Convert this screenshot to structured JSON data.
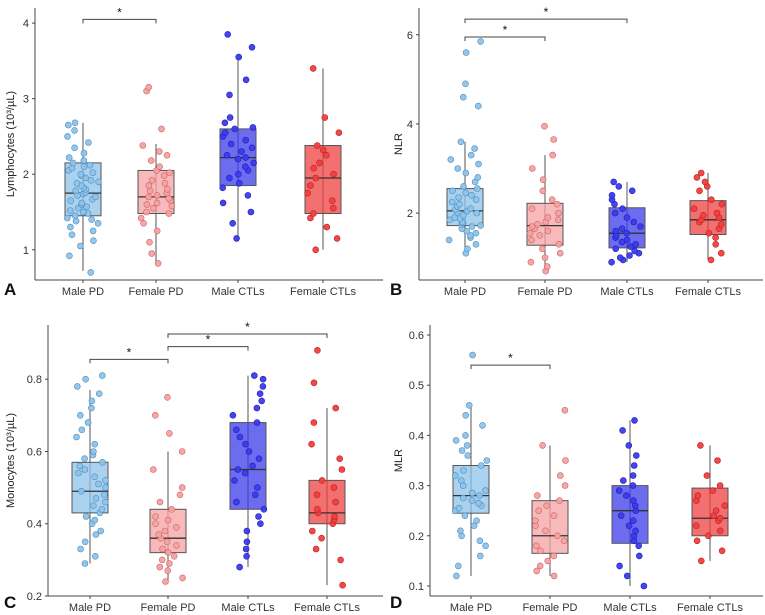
{
  "chart_data": [
    {
      "type": "box",
      "panel": "A",
      "ylabel": "Lymphocytes (10³/µL)",
      "ylim": [
        0.6,
        4.2
      ],
      "yticks": [
        1,
        2,
        3,
        4
      ],
      "categories": [
        "Male PD",
        "Female PD",
        "Male CTLs",
        "Female CTLs"
      ],
      "colors": [
        "#8ec3ea",
        "#f4a2a2",
        "#3b3bea",
        "#ee4040"
      ],
      "boxes": [
        {
          "q1": 1.45,
          "median": 1.75,
          "q3": 2.15,
          "whisker_low": 0.72,
          "whisker_high": 2.68
        },
        {
          "q1": 1.48,
          "median": 1.7,
          "q3": 2.05,
          "whisker_low": 0.82,
          "whisker_high": 2.4
        },
        {
          "q1": 1.85,
          "median": 2.22,
          "q3": 2.6,
          "whisker_low": 1.15,
          "whisker_high": 3.55
        },
        {
          "q1": 1.48,
          "median": 1.95,
          "q3": 2.38,
          "whisker_low": 1.0,
          "whisker_high": 3.4
        }
      ],
      "points": [
        [
          0.7,
          0.92,
          1.05,
          1.12,
          1.2,
          1.25,
          1.3,
          1.35,
          1.38,
          1.4,
          1.42,
          1.45,
          1.48,
          1.5,
          1.52,
          1.55,
          1.57,
          1.6,
          1.62,
          1.65,
          1.67,
          1.7,
          1.72,
          1.74,
          1.76,
          1.78,
          1.8,
          1.82,
          1.85,
          1.88,
          1.9,
          1.92,
          1.95,
          1.98,
          2.0,
          2.02,
          2.05,
          2.08,
          2.1,
          2.12,
          2.15,
          2.18,
          2.22,
          2.28,
          2.35,
          2.42,
          2.5,
          2.58,
          2.65,
          2.68
        ],
        [
          0.82,
          0.95,
          1.1,
          1.25,
          1.35,
          1.42,
          1.48,
          1.5,
          1.55,
          1.58,
          1.6,
          1.62,
          1.65,
          1.68,
          1.7,
          1.72,
          1.75,
          1.78,
          1.8,
          1.85,
          1.88,
          1.92,
          1.98,
          2.02,
          2.05,
          2.1,
          2.18,
          2.25,
          2.3,
          2.38,
          2.6,
          3.1,
          3.15
        ],
        [
          1.15,
          1.35,
          1.5,
          1.62,
          1.72,
          1.82,
          1.88,
          1.95,
          2.0,
          2.05,
          2.1,
          2.15,
          2.2,
          2.22,
          2.25,
          2.3,
          2.35,
          2.4,
          2.45,
          2.5,
          2.55,
          2.6,
          2.62,
          2.68,
          2.75,
          3.05,
          3.25,
          3.55,
          3.68,
          3.85
        ],
        [
          1.0,
          1.15,
          1.3,
          1.42,
          1.48,
          1.55,
          1.65,
          1.75,
          1.85,
          1.95,
          2.0,
          2.08,
          2.15,
          2.25,
          2.32,
          2.38,
          2.55,
          2.75,
          3.4
        ]
      ],
      "significance": [
        {
          "from": 0,
          "to": 1,
          "y": 4.05,
          "label": "*"
        }
      ]
    },
    {
      "type": "box",
      "panel": "B",
      "ylabel": "NLR",
      "ylim": [
        0.5,
        6.6
      ],
      "yticks": [
        2,
        4,
        6
      ],
      "categories": [
        "Male PD",
        "Female PD",
        "Male CTLs",
        "Female CTLs"
      ],
      "colors": [
        "#8ec3ea",
        "#f4a2a2",
        "#3b3bea",
        "#ee4040"
      ],
      "boxes": [
        {
          "q1": 1.72,
          "median": 2.05,
          "q3": 2.55,
          "whisker_low": 1.1,
          "whisker_high": 3.6
        },
        {
          "q1": 1.28,
          "median": 1.72,
          "q3": 2.22,
          "whisker_low": 0.7,
          "whisker_high": 3.3
        },
        {
          "q1": 1.22,
          "median": 1.55,
          "q3": 2.12,
          "whisker_low": 0.9,
          "whisker_high": 2.7
        },
        {
          "q1": 1.52,
          "median": 1.85,
          "q3": 2.28,
          "whisker_low": 0.95,
          "whisker_high": 2.9
        }
      ],
      "points": [
        [
          1.1,
          1.2,
          1.3,
          1.4,
          1.45,
          1.5,
          1.55,
          1.6,
          1.65,
          1.7,
          1.72,
          1.75,
          1.78,
          1.8,
          1.85,
          1.88,
          1.9,
          1.95,
          2.0,
          2.02,
          2.05,
          2.08,
          2.1,
          2.15,
          2.2,
          2.25,
          2.3,
          2.35,
          2.4,
          2.45,
          2.5,
          2.55,
          2.6,
          2.7,
          2.8,
          2.9,
          3.0,
          3.1,
          3.2,
          3.3,
          3.45,
          3.6,
          4.4,
          4.6,
          4.9,
          5.6,
          5.85
        ],
        [
          0.7,
          0.8,
          0.9,
          1.0,
          1.1,
          1.2,
          1.3,
          1.4,
          1.5,
          1.55,
          1.6,
          1.65,
          1.7,
          1.75,
          1.8,
          1.85,
          1.9,
          2.0,
          2.1,
          2.2,
          2.3,
          2.5,
          2.75,
          3.0,
          3.3,
          3.65,
          3.95
        ],
        [
          0.9,
          0.95,
          1.0,
          1.05,
          1.1,
          1.15,
          1.2,
          1.25,
          1.3,
          1.35,
          1.4,
          1.45,
          1.5,
          1.55,
          1.6,
          1.65,
          1.7,
          1.8,
          1.9,
          2.0,
          2.1,
          2.2,
          2.3,
          2.4,
          2.5,
          2.6,
          2.7
        ],
        [
          0.95,
          1.1,
          1.3,
          1.45,
          1.55,
          1.65,
          1.75,
          1.8,
          1.85,
          1.9,
          1.95,
          2.0,
          2.1,
          2.2,
          2.3,
          2.5,
          2.6,
          2.7,
          2.8,
          2.9
        ]
      ],
      "significance": [
        {
          "from": 0,
          "to": 1,
          "y": 5.95,
          "label": "*"
        },
        {
          "from": 0,
          "to": 2,
          "y": 6.35,
          "label": "*"
        }
      ]
    },
    {
      "type": "box",
      "panel": "C",
      "ylabel": "Monocytes (10³/µL)",
      "ylim": [
        0.2,
        0.95
      ],
      "yticks": [
        0.2,
        0.4,
        0.6,
        0.8
      ],
      "categories": [
        "Male PD",
        "Female PD",
        "Male CTLs",
        "Female CTLs"
      ],
      "colors": [
        "#8ec3ea",
        "#f4a2a2",
        "#3b3bea",
        "#ee4040"
      ],
      "boxes": [
        {
          "q1": 0.43,
          "median": 0.49,
          "q3": 0.57,
          "whisker_low": 0.29,
          "whisker_high": 0.77
        },
        {
          "q1": 0.32,
          "median": 0.36,
          "q3": 0.44,
          "whisker_low": 0.24,
          "whisker_high": 0.6
        },
        {
          "q1": 0.44,
          "median": 0.55,
          "q3": 0.68,
          "whisker_low": 0.28,
          "whisker_high": 0.81
        },
        {
          "q1": 0.4,
          "median": 0.43,
          "q3": 0.52,
          "whisker_low": 0.23,
          "whisker_high": 0.72
        }
      ],
      "points": [
        [
          0.29,
          0.31,
          0.33,
          0.35,
          0.37,
          0.38,
          0.4,
          0.41,
          0.42,
          0.43,
          0.44,
          0.45,
          0.46,
          0.47,
          0.48,
          0.49,
          0.5,
          0.51,
          0.52,
          0.53,
          0.54,
          0.55,
          0.56,
          0.57,
          0.58,
          0.59,
          0.6,
          0.62,
          0.64,
          0.66,
          0.68,
          0.7,
          0.72,
          0.74,
          0.76,
          0.78,
          0.8,
          0.81
        ],
        [
          0.24,
          0.25,
          0.27,
          0.28,
          0.29,
          0.3,
          0.31,
          0.32,
          0.33,
          0.34,
          0.35,
          0.36,
          0.37,
          0.38,
          0.39,
          0.4,
          0.41,
          0.42,
          0.44,
          0.46,
          0.48,
          0.5,
          0.55,
          0.6,
          0.65,
          0.7,
          0.75
        ],
        [
          0.28,
          0.31,
          0.33,
          0.35,
          0.38,
          0.4,
          0.42,
          0.44,
          0.46,
          0.48,
          0.5,
          0.52,
          0.54,
          0.55,
          0.56,
          0.58,
          0.6,
          0.62,
          0.64,
          0.66,
          0.68,
          0.7,
          0.72,
          0.74,
          0.76,
          0.78,
          0.8,
          0.81
        ],
        [
          0.23,
          0.3,
          0.33,
          0.36,
          0.38,
          0.4,
          0.41,
          0.42,
          0.43,
          0.44,
          0.46,
          0.48,
          0.5,
          0.52,
          0.55,
          0.58,
          0.62,
          0.68,
          0.72,
          0.79,
          0.88
        ]
      ],
      "significance": [
        {
          "from": 0,
          "to": 1,
          "y": 0.855,
          "label": "*"
        },
        {
          "from": 1,
          "to": 2,
          "y": 0.89,
          "label": "*"
        },
        {
          "from": 1,
          "to": 3,
          "y": 0.925,
          "label": "*"
        }
      ]
    },
    {
      "type": "box",
      "panel": "D",
      "ylabel": "MLR",
      "ylim": [
        0.08,
        0.62
      ],
      "yticks": [
        0.1,
        0.2,
        0.3,
        0.4,
        0.5,
        0.6
      ],
      "categories": [
        "Male PD",
        "Female PD",
        "Male CTLs",
        "Female CTLs"
      ],
      "colors": [
        "#8ec3ea",
        "#f4a2a2",
        "#3b3bea",
        "#ee4040"
      ],
      "boxes": [
        {
          "q1": 0.245,
          "median": 0.28,
          "q3": 0.34,
          "whisker_low": 0.12,
          "whisker_high": 0.46
        },
        {
          "q1": 0.165,
          "median": 0.2,
          "q3": 0.27,
          "whisker_low": 0.12,
          "whisker_high": 0.38
        },
        {
          "q1": 0.185,
          "median": 0.25,
          "q3": 0.3,
          "whisker_low": 0.1,
          "whisker_high": 0.43
        },
        {
          "q1": 0.2,
          "median": 0.235,
          "q3": 0.295,
          "whisker_low": 0.15,
          "whisker_high": 0.38
        }
      ],
      "points": [
        [
          0.12,
          0.14,
          0.16,
          0.18,
          0.19,
          0.2,
          0.21,
          0.22,
          0.23,
          0.24,
          0.25,
          0.255,
          0.26,
          0.265,
          0.27,
          0.275,
          0.28,
          0.285,
          0.29,
          0.3,
          0.31,
          0.32,
          0.33,
          0.34,
          0.35,
          0.36,
          0.37,
          0.38,
          0.39,
          0.4,
          0.42,
          0.44,
          0.46,
          0.56
        ],
        [
          0.12,
          0.13,
          0.14,
          0.15,
          0.16,
          0.17,
          0.18,
          0.19,
          0.2,
          0.21,
          0.22,
          0.23,
          0.24,
          0.25,
          0.26,
          0.27,
          0.28,
          0.3,
          0.32,
          0.35,
          0.38,
          0.45
        ],
        [
          0.1,
          0.12,
          0.14,
          0.16,
          0.18,
          0.19,
          0.2,
          0.21,
          0.22,
          0.23,
          0.24,
          0.25,
          0.26,
          0.27,
          0.28,
          0.29,
          0.3,
          0.31,
          0.32,
          0.34,
          0.36,
          0.38,
          0.41,
          0.43
        ],
        [
          0.15,
          0.17,
          0.19,
          0.2,
          0.21,
          0.22,
          0.23,
          0.235,
          0.24,
          0.25,
          0.26,
          0.27,
          0.28,
          0.29,
          0.3,
          0.32,
          0.35,
          0.38
        ]
      ],
      "significance": [
        {
          "from": 0,
          "to": 1,
          "y": 0.54,
          "label": "*"
        }
      ]
    }
  ]
}
